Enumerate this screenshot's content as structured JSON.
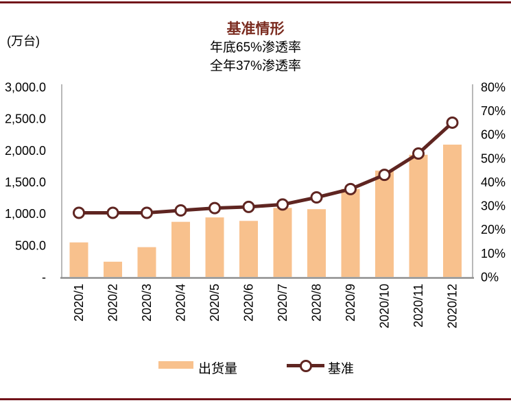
{
  "colors": {
    "bar": "#F8C18D",
    "line": "#5F2521",
    "border_red": "#72131A",
    "title_red": "#7B2C20",
    "axis_gray": "#A6A6A6",
    "axis_dark_gray": "#8F8F8F",
    "text": "#000000"
  },
  "chart_data": {
    "type": "combo",
    "title": "基准情形",
    "subtitle": [
      "年底65%渗透率",
      "全年37%渗透率"
    ],
    "categories": [
      "2020/1",
      "2020/2",
      "2020/3",
      "2020/4",
      "2020/5",
      "2020/6",
      "2020/7",
      "2020/8",
      "2020/9",
      "2020/10",
      "2020/11",
      "2020/12"
    ],
    "series": [
      {
        "name": "出货量",
        "type": "bar",
        "axis": "left",
        "values": [
          545,
          240,
          470,
          870,
          940,
          885,
          1090,
          1070,
          1390,
          1680,
          1930,
          2090
        ]
      },
      {
        "name": "基准",
        "type": "line",
        "axis": "right",
        "values": [
          27,
          27,
          27,
          28,
          29,
          29.5,
          30.5,
          33.5,
          37,
          43,
          52,
          65
        ]
      }
    ],
    "left_axis": {
      "label": "(万台)",
      "min": 0,
      "max": 3000,
      "tick_labels": [
        "3,000.0",
        "2,500.0",
        "2,000.0",
        "1,500.0",
        "1,000.0",
        "500.0",
        "-"
      ]
    },
    "right_axis": {
      "min": 0,
      "max": 80,
      "tick_labels": [
        "80%",
        "70%",
        "60%",
        "50%",
        "40%",
        "30%",
        "20%",
        "10%",
        "0%"
      ]
    },
    "grid": false,
    "legend_position": "bottom"
  }
}
